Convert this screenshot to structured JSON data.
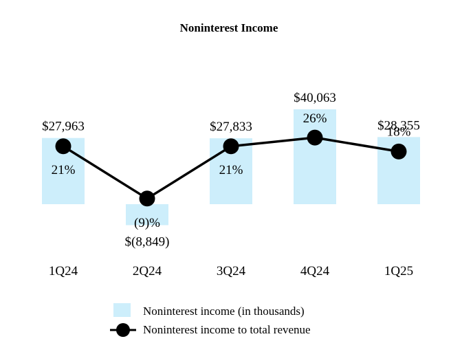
{
  "chart_data": {
    "type": "bar",
    "title": "Noninterest Income",
    "xlabel": "",
    "ylabel": "",
    "categories": [
      "1Q24",
      "2Q24",
      "3Q24",
      "4Q24",
      "1Q25"
    ],
    "series": [
      {
        "name": "Noninterest income (in thousands)",
        "kind": "bar",
        "values": [
          27963,
          -8849,
          27833,
          40063,
          28355
        ],
        "labels": [
          "$27,963",
          "$(8,849)",
          "$27,833",
          "$40,063",
          "$28,355"
        ],
        "color": "#cdeefb"
      },
      {
        "name": "Noninterest income to total revenue",
        "kind": "line",
        "values": [
          21,
          -9,
          21,
          26,
          18
        ],
        "labels": [
          "21%",
          "(9)%",
          "21%",
          "26%",
          "18%"
        ],
        "color": "#000000"
      }
    ],
    "ylim_bar": [
      -15000,
      45000
    ],
    "ylim_line": [
      -15,
      35
    ],
    "legend_position": "bottom-center",
    "grid": false
  }
}
